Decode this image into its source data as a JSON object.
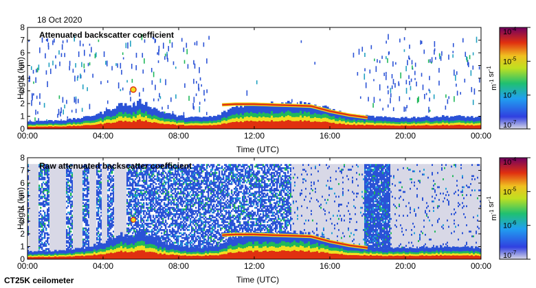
{
  "date_label": "18 Oct 2020",
  "instrument_label": "CT25K ceilometer",
  "colors": {
    "sky": "#ffffff",
    "no_data": "#d8d8e6",
    "low_signal": "#2a52d6",
    "mid_signal": "#20b85a",
    "high_signal": "#f0e020",
    "peak_signal": "#e03010"
  },
  "chart_data": [
    {
      "type": "heatmap",
      "title": "Attenuated backscatter coefficient",
      "xlabel": "Time (UTC)",
      "ylabel": "Height (km)",
      "xlim": [
        0,
        24
      ],
      "ylim": [
        0,
        8
      ],
      "x_ticks": [
        "00:00",
        "04:00",
        "08:00",
        "12:00",
        "16:00",
        "20:00",
        "00:00"
      ],
      "y_ticks": [
        "0",
        "1",
        "2",
        "3",
        "4",
        "5",
        "6",
        "7",
        "8"
      ],
      "colorbar": {
        "scale": "log",
        "range": [
          1e-07,
          0.0001
        ],
        "tick_labels": [
          "10-7",
          "10-6",
          "10-5",
          "10-4"
        ],
        "label": "m-1 sr-1"
      },
      "layer_top_km": [
        [
          0,
          0.6
        ],
        [
          1,
          0.65
        ],
        [
          2,
          0.7
        ],
        [
          3,
          0.9
        ],
        [
          4,
          1.3
        ],
        [
          5,
          2.0
        ],
        [
          5.5,
          1.8
        ],
        [
          6,
          2.2
        ],
        [
          7,
          1.4
        ],
        [
          8,
          1.0
        ],
        [
          9,
          0.9
        ],
        [
          10,
          1.0
        ],
        [
          11,
          1.8
        ],
        [
          12,
          2.0
        ],
        [
          13,
          2.0
        ],
        [
          14,
          2.1
        ],
        [
          15,
          1.95
        ],
        [
          16,
          1.6
        ],
        [
          17,
          1.1
        ],
        [
          18,
          1.0
        ],
        [
          19,
          0.9
        ],
        [
          20,
          0.9
        ],
        [
          21,
          0.95
        ],
        [
          22,
          1.0
        ],
        [
          23,
          1.0
        ],
        [
          24,
          0.9
        ]
      ],
      "cloud_base_km": [
        [
          10.3,
          1.9
        ],
        [
          11,
          1.95
        ],
        [
          12,
          1.95
        ],
        [
          13,
          1.9
        ],
        [
          14,
          1.85
        ],
        [
          15,
          1.8
        ],
        [
          16,
          1.4
        ],
        [
          17,
          1.1
        ],
        [
          18,
          0.9
        ]
      ],
      "isolated_echo": [
        5.6,
        3.1
      ]
    },
    {
      "type": "heatmap",
      "title": "Raw attenuated backscatter coefficient",
      "xlabel": "Time (UTC)",
      "ylabel": "Height (km)",
      "xlim": [
        0,
        24
      ],
      "ylim": [
        0,
        8
      ],
      "x_ticks": [
        "00:00",
        "04:00",
        "08:00",
        "12:00",
        "16:00",
        "20:00",
        "00:00"
      ],
      "y_ticks": [
        "0",
        "1",
        "2",
        "3",
        "4",
        "5",
        "6",
        "7",
        "8"
      ],
      "colorbar": {
        "scale": "log",
        "range": [
          1e-07,
          0.0001
        ],
        "tick_labels": [
          "10-7",
          "10-6",
          "10-5",
          "10-4"
        ],
        "label": "m-1 sr-1"
      },
      "noise_top_km": 7.5,
      "no_data_gaps_hours": [
        [
          0.1,
          0.6
        ],
        [
          1.2,
          2.0
        ],
        [
          2.4,
          2.9
        ],
        [
          3.3,
          3.6
        ],
        [
          3.9,
          4.2
        ],
        [
          4.6,
          5.2
        ]
      ],
      "sparse_noise_hours": [
        [
          14.0,
          17.8
        ],
        [
          19.2,
          24.0
        ]
      ],
      "dense_noise_hours": [
        [
          17.8,
          19.2
        ]
      ]
    }
  ]
}
